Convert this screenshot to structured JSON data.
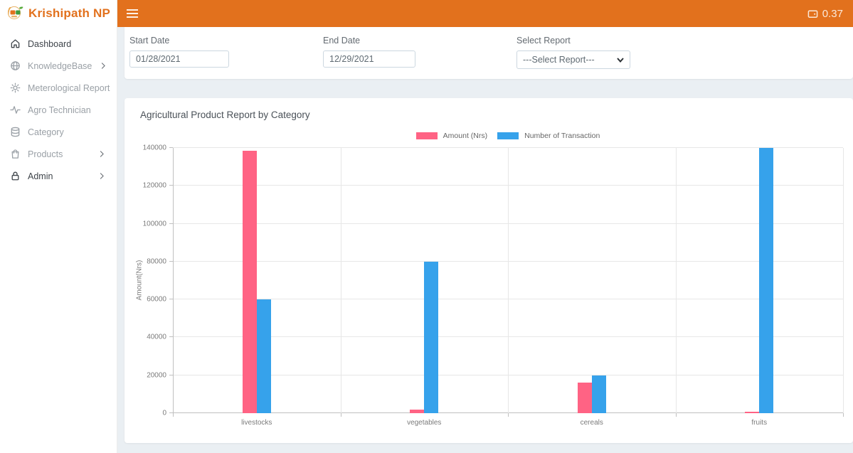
{
  "theme": {
    "accent_orange": "#e2711d",
    "sidebar_bg": "#ffffff",
    "content_bg": "#eaeff3",
    "series_pink": "#ff6384",
    "series_blue": "#36a2eb"
  },
  "sidebar": {
    "brand": "Krishipath NP",
    "items": [
      {
        "label": "Dashboard",
        "icon": "home",
        "expandable": false,
        "emphasis": true
      },
      {
        "label": "KnowledgeBase",
        "icon": "globe",
        "expandable": true,
        "emphasis": false
      },
      {
        "label": "Meterological Report",
        "icon": "sun",
        "expandable": false,
        "emphasis": false
      },
      {
        "label": "Agro Technician",
        "icon": "activity",
        "expandable": false,
        "emphasis": false
      },
      {
        "label": "Category",
        "icon": "database",
        "expandable": false,
        "emphasis": false
      },
      {
        "label": "Products",
        "icon": "shopping-bag",
        "expandable": true,
        "emphasis": false
      },
      {
        "label": "Admin",
        "icon": "lock",
        "expandable": true,
        "emphasis": true
      }
    ]
  },
  "topbar": {
    "credit_value": "0.37"
  },
  "filters": {
    "start_date": {
      "label": "Start Date",
      "value": "01/28/2021"
    },
    "end_date": {
      "label": "End Date",
      "value": "12/29/2021"
    },
    "report": {
      "label": "Select Report",
      "value": "---Select Report---"
    }
  },
  "chart_data": {
    "type": "bar",
    "title": "Agricultural Product Report by Category",
    "categories": [
      "livestocks",
      "vegetables",
      "cereals",
      "fruits"
    ],
    "series": [
      {
        "name": "Amount (Nrs)",
        "color": "#ff6384",
        "values": [
          138500,
          2000,
          16000,
          700
        ]
      },
      {
        "name": "Number of Transaction",
        "color": "#36a2eb",
        "values": [
          60000,
          80000,
          20000,
          140000
        ]
      }
    ],
    "xlabel": "",
    "ylabel": "Amount(Nrs)",
    "ylim": [
      0,
      140000
    ],
    "ytick_step": 20000,
    "grid": true,
    "legend_position": "top"
  }
}
